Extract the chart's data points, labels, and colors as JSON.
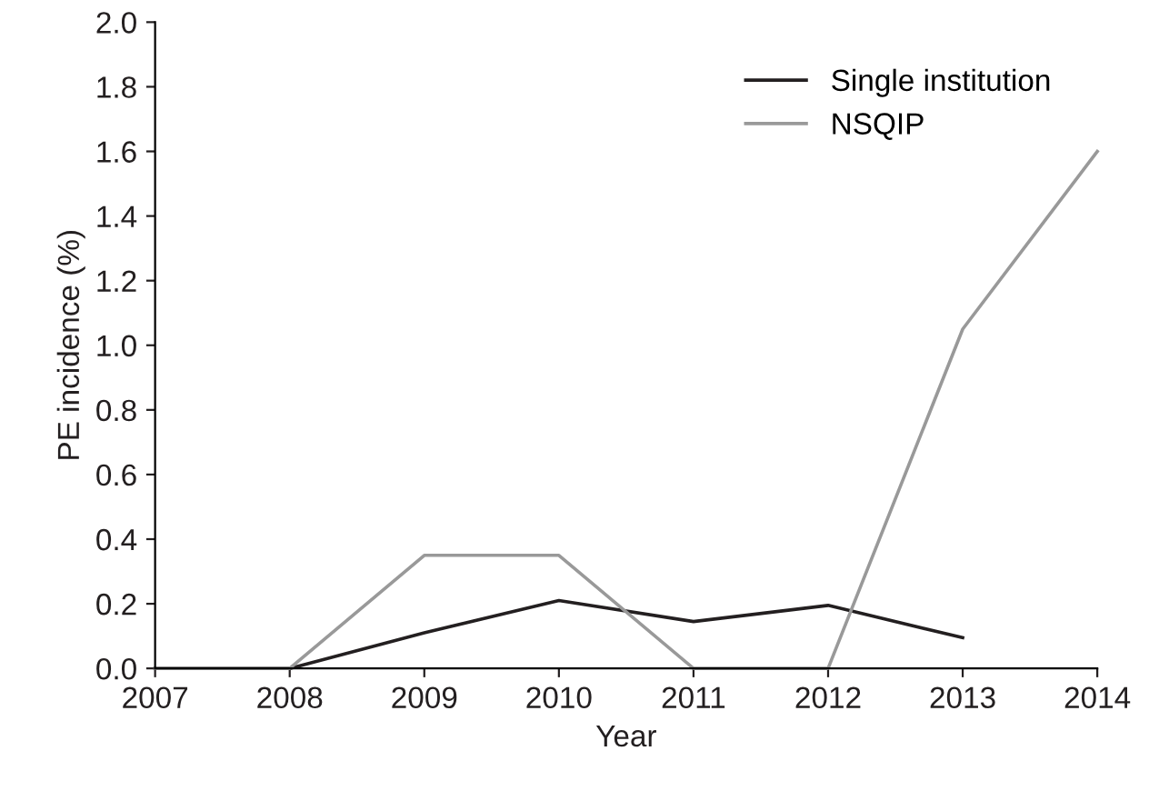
{
  "chart_data": {
    "type": "line",
    "xlabel": "Year",
    "ylabel": "PE incidence (%)",
    "x": [
      2007,
      2008,
      2009,
      2010,
      2011,
      2012,
      2013,
      2014
    ],
    "series": [
      {
        "name": "Single institution",
        "color": "#231f20",
        "x": [
          2007,
          2008,
          2009,
          2010,
          2011,
          2012,
          2013
        ],
        "values": [
          0,
          0,
          0.11,
          0.21,
          0.145,
          0.195,
          0.095
        ]
      },
      {
        "name": "NSQIP",
        "color": "#999999",
        "values": [
          0,
          0,
          0.35,
          0.35,
          0,
          0,
          1.05,
          1.6
        ]
      }
    ],
    "xlim": [
      2007,
      2014
    ],
    "xticks": [
      2007,
      2008,
      2009,
      2010,
      2011,
      2012,
      2013,
      2014
    ],
    "ylim": [
      0,
      2.0
    ],
    "yticks": [
      {
        "value": 0,
        "label": "0.0"
      },
      0.2,
      0.4,
      0.6,
      0.8,
      {
        "value": 1.0,
        "label": "1.0"
      },
      1.2,
      1.4,
      1.6,
      1.8,
      {
        "value": 2.0,
        "label": "2.0"
      }
    ],
    "grid": false,
    "legend": "top right",
    "marker": "none",
    "line_style": "solid"
  }
}
